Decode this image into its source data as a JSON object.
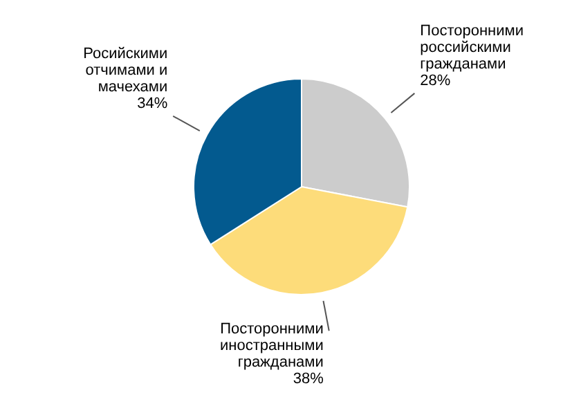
{
  "chart_data": {
    "type": "pie",
    "categories": [
      "Посторонними\nроссийскими\nгражданами",
      "Посторонними\nиностранными\nгражданами",
      "Росийскими\nотчимами и\nмачехами"
    ],
    "values": [
      28,
      38,
      34
    ],
    "colors": [
      "#cccccc",
      "#fddc7a",
      "#035a8f"
    ],
    "value_labels": [
      "28%",
      "38%",
      "34%"
    ],
    "legend": false
  }
}
